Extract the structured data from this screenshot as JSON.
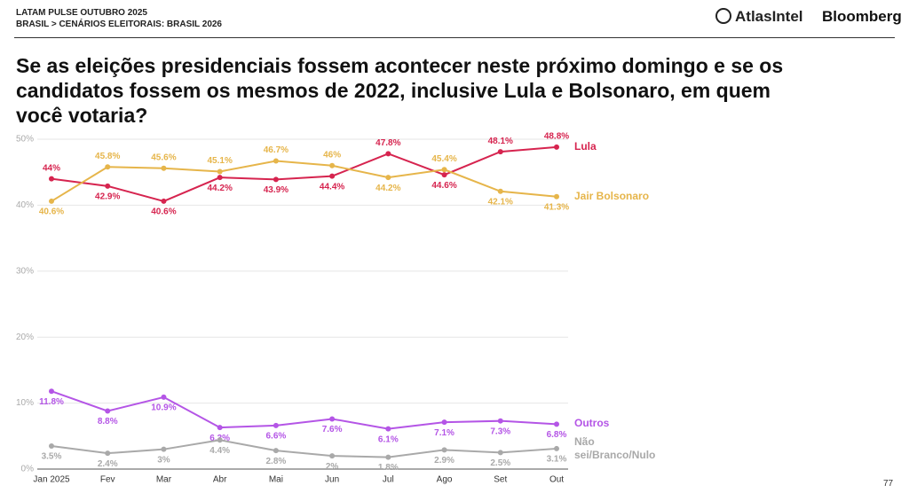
{
  "header": {
    "pulse": "LATAM PULSE OUTUBRO 2025",
    "section": "BRASIL > CENÁRIOS ELEITORAIS: BRASIL 2026",
    "logo1": "AtlasIntel",
    "logo2": "Bloomberg",
    "page": "77"
  },
  "chart_data": {
    "type": "line",
    "title": "Se as eleições presidenciais fossem acontecer neste próximo domingo e se os candidatos fossem os mesmos de 2022, inclusive Lula e Bolsonaro, em quem você votaria?",
    "categories": [
      "Jan 2025",
      "Fev",
      "Mar",
      "Abr",
      "Mai",
      "Jun",
      "Jul",
      "Ago",
      "Set",
      "Out"
    ],
    "ylim": [
      0,
      50
    ],
    "yticks": [
      {
        "value": 0,
        "label": "0%"
      },
      {
        "value": 10,
        "label": "10%"
      },
      {
        "value": 20,
        "label": "20%"
      },
      {
        "value": 30,
        "label": "30%"
      },
      {
        "value": 40,
        "label": "40%"
      },
      {
        "value": 50,
        "label": "50%"
      }
    ],
    "grid": true,
    "series": [
      {
        "name": "Lula",
        "color": "#d6244f",
        "values": [
          44,
          42.9,
          40.6,
          44.2,
          43.9,
          44.4,
          47.8,
          44.6,
          48.1,
          48.8
        ],
        "value_labels": [
          "44%",
          "42.9%",
          "40.6%",
          "44.2%",
          "43.9%",
          "44.4%",
          "47.8%",
          "44.6%",
          "48.1%",
          "48.8%"
        ]
      },
      {
        "name": "Jair Bolsonaro",
        "color": "#e6b54a",
        "values": [
          40.6,
          45.8,
          45.6,
          45.1,
          46.7,
          46,
          44.2,
          45.4,
          42.1,
          41.3
        ],
        "value_labels": [
          "40.6%",
          "45.8%",
          "45.6%",
          "45.1%",
          "46.7%",
          "46%",
          "44.2%",
          "45.4%",
          "42.1%",
          "41.3%"
        ]
      },
      {
        "name": "Outros",
        "color": "#b455e6",
        "values": [
          11.8,
          8.8,
          10.9,
          6.3,
          6.6,
          7.6,
          6.1,
          7.1,
          7.3,
          6.8
        ],
        "value_labels": [
          "11.8%",
          "8.8%",
          "10.9%",
          "6.3%",
          "6.6%",
          "7.6%",
          "6.1%",
          "7.1%",
          "7.3%",
          "6.8%"
        ]
      },
      {
        "name": "Não sei/Branco/Nulo",
        "color": "#a9a9a9",
        "values": [
          3.5,
          2.4,
          3,
          4.4,
          2.8,
          2,
          1.8,
          2.9,
          2.5,
          3.1
        ],
        "value_labels": [
          "3.5%",
          "2.4%",
          "3%",
          "4.4%",
          "2.8%",
          "2%",
          "1.8%",
          "2.9%",
          "2.5%",
          "3.1%"
        ]
      }
    ]
  }
}
